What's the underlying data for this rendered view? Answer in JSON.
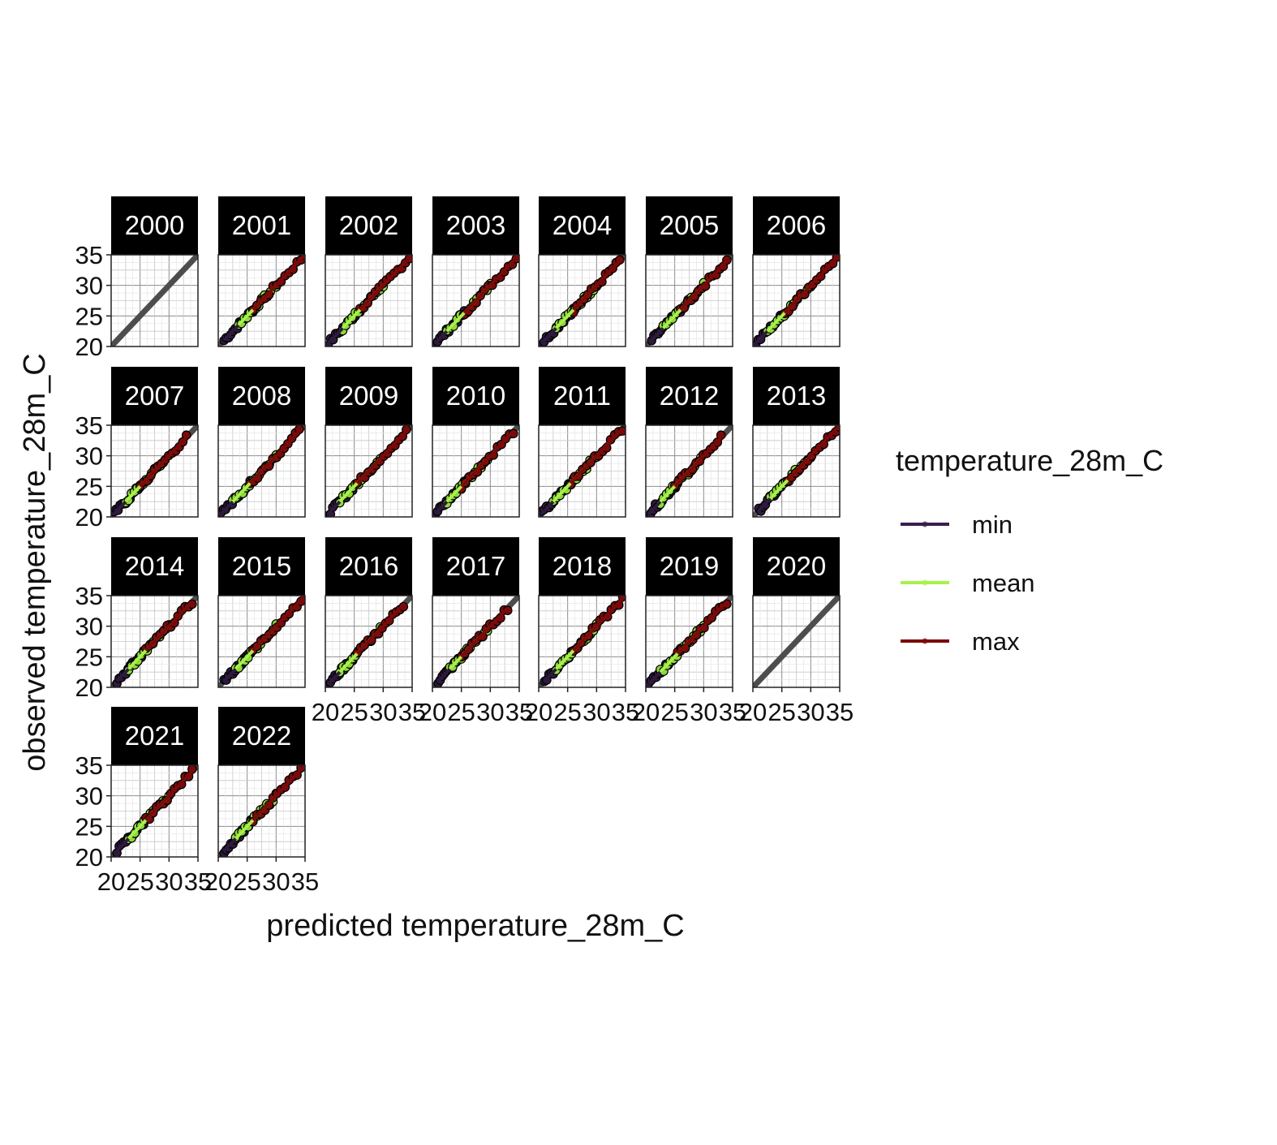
{
  "chart_data": {
    "type": "scatter",
    "layout": "facet_wrap",
    "facet_ncol": 7,
    "xlabel": "predicted temperature_28m_C",
    "ylabel": "observed temperature_28m_C",
    "xlim": [
      20,
      35
    ],
    "ylim": [
      20,
      35
    ],
    "x_ticks": [
      20,
      25,
      30,
      35
    ],
    "y_ticks": [
      20,
      25,
      30,
      35
    ],
    "x_tick_labels": [
      "20",
      "25",
      "30",
      "35"
    ],
    "y_tick_labels": [
      "20",
      "25",
      "30",
      "35"
    ],
    "grid": true,
    "reference_line": "y = x",
    "legend": {
      "title": "temperature_28m_C",
      "position": "right",
      "entries": [
        {
          "label": "min",
          "color": "#3b1e4e"
        },
        {
          "label": "mean",
          "color": "#a6f24a"
        },
        {
          "label": "max",
          "color": "#7a0a0a"
        }
      ]
    },
    "series_colors": {
      "min": "#2e1a3d",
      "mean": "#a6f24a",
      "max": "#7a0a0a"
    },
    "series_point_fill": {
      "min": "#2e1a3d",
      "mean": "#8fd93a",
      "max": "#7a0a0a"
    },
    "facets": [
      {
        "label": "2000",
        "series": {}
      },
      {
        "label": "2001",
        "series": {
          "min": [
            21,
            26
          ],
          "mean": [
            23.5,
            30
          ],
          "max": [
            26,
            35
          ]
        }
      },
      {
        "label": "2002",
        "series": {
          "min": [
            20.5,
            26
          ],
          "mean": [
            23,
            30
          ],
          "max": [
            26,
            34.5
          ]
        }
      },
      {
        "label": "2003",
        "series": {
          "min": [
            20.5,
            25.5
          ],
          "mean": [
            22.5,
            30
          ],
          "max": [
            25.5,
            34.5
          ]
        }
      },
      {
        "label": "2004",
        "series": {
          "min": [
            20.5,
            26
          ],
          "mean": [
            23,
            30
          ],
          "max": [
            26,
            34
          ]
        }
      },
      {
        "label": "2005",
        "series": {
          "min": [
            21,
            26
          ],
          "mean": [
            23,
            30
          ],
          "max": [
            26,
            34
          ]
        }
      },
      {
        "label": "2006",
        "series": {
          "min": [
            20.5,
            26
          ],
          "mean": [
            22.5,
            30
          ],
          "max": [
            25.5,
            34.5
          ]
        }
      },
      {
        "label": "2007",
        "series": {
          "min": [
            20.5,
            25
          ],
          "mean": [
            22.5,
            29
          ],
          "max": [
            25,
            33
          ]
        }
      },
      {
        "label": "2008",
        "series": {
          "min": [
            20.5,
            25.5
          ],
          "mean": [
            22.5,
            30
          ],
          "max": [
            25.5,
            34
          ]
        }
      },
      {
        "label": "2009",
        "series": {
          "min": [
            20.5,
            25.5
          ],
          "mean": [
            22.5,
            29.5
          ],
          "max": [
            25.5,
            34
          ]
        }
      },
      {
        "label": "2010",
        "series": {
          "min": [
            20.5,
            25.5
          ],
          "mean": [
            22.5,
            29.5
          ],
          "max": [
            25,
            34
          ]
        }
      },
      {
        "label": "2011",
        "series": {
          "min": [
            20.5,
            26
          ],
          "mean": [
            22.5,
            30
          ],
          "max": [
            25.5,
            34.5
          ]
        }
      },
      {
        "label": "2012",
        "series": {
          "min": [
            20.5,
            25.5
          ],
          "mean": [
            22.5,
            29.5
          ],
          "max": [
            25,
            33
          ]
        }
      },
      {
        "label": "2013",
        "series": {
          "min": [
            21,
            26
          ],
          "mean": [
            23,
            30
          ],
          "max": [
            26,
            35
          ]
        }
      },
      {
        "label": "2014",
        "series": {
          "min": [
            21,
            26
          ],
          "mean": [
            23,
            30
          ],
          "max": [
            26,
            34
          ]
        }
      },
      {
        "label": "2015",
        "series": {
          "min": [
            21,
            26
          ],
          "mean": [
            23,
            30
          ],
          "max": [
            26,
            35
          ]
        }
      },
      {
        "label": "2016",
        "series": {
          "min": [
            20.5,
            25.5
          ],
          "mean": [
            22.5,
            29.5
          ],
          "max": [
            25.5,
            33.5
          ]
        }
      },
      {
        "label": "2017",
        "series": {
          "min": [
            21,
            25.5
          ],
          "mean": [
            23,
            29.5
          ],
          "max": [
            25,
            33
          ]
        }
      },
      {
        "label": "2018",
        "series": {
          "min": [
            21,
            26
          ],
          "mean": [
            23,
            30
          ],
          "max": [
            26,
            34.5
          ]
        }
      },
      {
        "label": "2019",
        "series": {
          "min": [
            20.5,
            26
          ],
          "mean": [
            22.5,
            30
          ],
          "max": [
            25.5,
            34
          ]
        }
      },
      {
        "label": "2020",
        "series": {}
      },
      {
        "label": "2021",
        "series": {
          "min": [
            21,
            26
          ],
          "mean": [
            23,
            30
          ],
          "max": [
            26,
            34
          ]
        }
      },
      {
        "label": "2022",
        "series": {
          "min": [
            21,
            26
          ],
          "mean": [
            23,
            30
          ],
          "max": [
            26,
            35
          ]
        }
      }
    ]
  }
}
